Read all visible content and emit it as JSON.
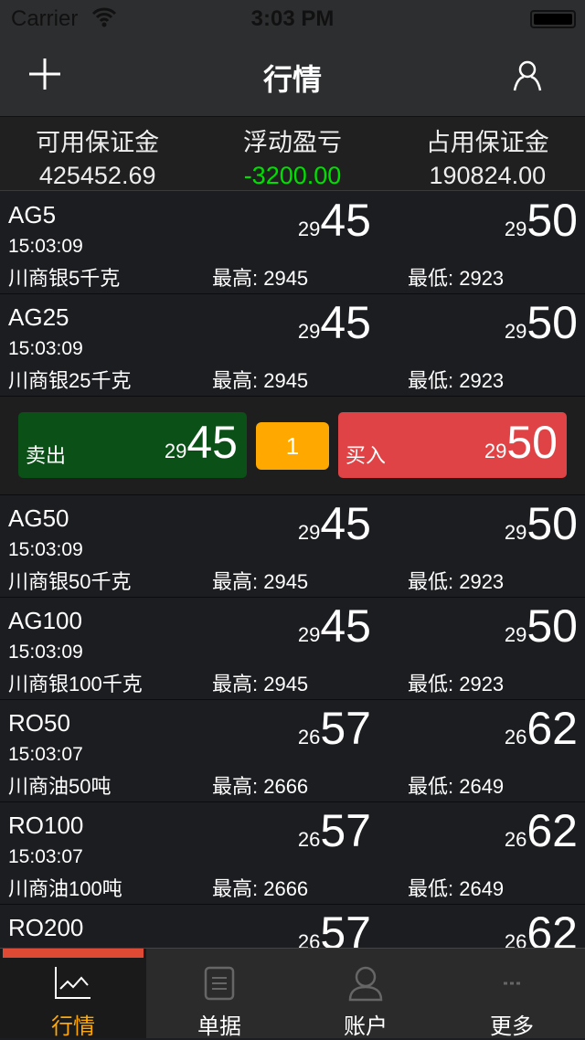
{
  "status": {
    "carrier": "Carrier",
    "time": "3:03 PM"
  },
  "nav": {
    "title": "行情",
    "left_icon": "plus-icon",
    "right_icon": "user-icon"
  },
  "summary": [
    {
      "label": "可用保证金",
      "value": "425452.69",
      "color": "#eeeeee"
    },
    {
      "label": "浮动盈亏",
      "value": "-3200.00",
      "color": "#00e000"
    },
    {
      "label": "占用保证金",
      "value": "190824.00",
      "color": "#eeeeee"
    }
  ],
  "rows": [
    {
      "name": "AG5",
      "time": "15:03:09",
      "desc": "川商银5千克",
      "high": "最高: 2945",
      "low": "最低: 2923",
      "bid_small": "29",
      "bid_big": "45",
      "ask_small": "29",
      "ask_big": "50"
    },
    {
      "name": "AG25",
      "time": "15:03:09",
      "desc": "川商银25千克",
      "high": "最高: 2945",
      "low": "最低: 2923",
      "bid_small": "29",
      "bid_big": "45",
      "ask_small": "29",
      "ask_big": "50"
    },
    {
      "name": "AG50",
      "time": "15:03:09",
      "desc": "川商银50千克",
      "high": "最高: 2945",
      "low": "最低: 2923",
      "bid_small": "29",
      "bid_big": "45",
      "ask_small": "29",
      "ask_big": "50"
    },
    {
      "name": "AG100",
      "time": "15:03:09",
      "desc": "川商银100千克",
      "high": "最高: 2945",
      "low": "最低: 2923",
      "bid_small": "29",
      "bid_big": "45",
      "ask_small": "29",
      "ask_big": "50"
    },
    {
      "name": "RO50",
      "time": "15:03:07",
      "desc": "川商油50吨",
      "high": "最高: 2666",
      "low": "最低: 2649",
      "bid_small": "26",
      "bid_big": "57",
      "ask_small": "26",
      "ask_big": "62"
    },
    {
      "name": "RO100",
      "time": "15:03:07",
      "desc": "川商油100吨",
      "high": "最高: 2666",
      "low": "最低: 2649",
      "bid_small": "26",
      "bid_big": "57",
      "ask_small": "26",
      "ask_big": "62"
    },
    {
      "name": "RO200",
      "time": "",
      "desc": "",
      "high": "",
      "low": "",
      "bid_small": "26",
      "bid_big": "57",
      "ask_small": "26",
      "ask_big": "62"
    }
  ],
  "trade": {
    "after_row": 1,
    "sell_label": "卖出",
    "sell_small": "29",
    "sell_big": "45",
    "qty": "1",
    "buy_label": "买入",
    "buy_small": "29",
    "buy_big": "50"
  },
  "tabs": [
    {
      "label": "行情",
      "icon": "chart-icon",
      "active": true
    },
    {
      "label": "单据",
      "icon": "document-icon",
      "active": false
    },
    {
      "label": "账户",
      "icon": "user-icon",
      "active": false
    },
    {
      "label": "更多",
      "icon": "more-icon",
      "active": false
    }
  ],
  "colors": {
    "active_tab": "#ffa800",
    "sell": "#0b5016",
    "buy": "#df4346",
    "qty": "#ffa800",
    "indicator": "#de4a34"
  }
}
